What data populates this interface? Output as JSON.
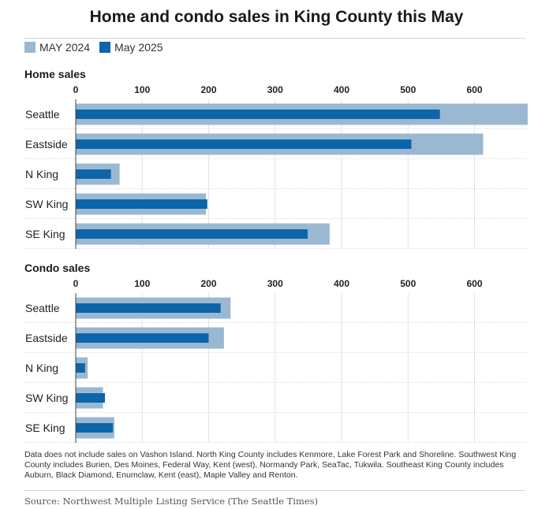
{
  "title": "Home and condo sales in King County this May",
  "colors": {
    "series_2024": "#9bb8d3",
    "series_2025": "#0d65a9"
  },
  "legend": [
    {
      "label": "MAY 2024",
      "color": "#9bb8d3"
    },
    {
      "label": "May 2025",
      "color": "#0d65a9"
    }
  ],
  "chart_data": [
    {
      "type": "bar",
      "orientation": "horizontal",
      "title": "Home sales",
      "categories": [
        "Seattle",
        "Eastside",
        "N King",
        "SW King",
        "SE King"
      ],
      "series": [
        {
          "name": "MAY 2024",
          "values": [
            680,
            613,
            66,
            196,
            382
          ]
        },
        {
          "name": "May 2025",
          "values": [
            548,
            505,
            53,
            198,
            349
          ]
        }
      ],
      "xticks": [
        0,
        100,
        200,
        300,
        400,
        500,
        600
      ],
      "xlim": [
        0,
        680
      ],
      "grid": true
    },
    {
      "type": "bar",
      "orientation": "horizontal",
      "title": "Condo sales",
      "categories": [
        "Seattle",
        "Eastside",
        "N King",
        "SW King",
        "SE King"
      ],
      "series": [
        {
          "name": "MAY 2024",
          "values": [
            233,
            223,
            18,
            41,
            58
          ]
        },
        {
          "name": "May 2025",
          "values": [
            218,
            200,
            14,
            44,
            56
          ]
        }
      ],
      "xticks": [
        0,
        100,
        200,
        300,
        400,
        500,
        600
      ],
      "xlim": [
        0,
        680
      ],
      "grid": true
    }
  ],
  "note": "Data does not include sales on Vashon Island. North King County includes Kenmore, Lake Forest Park and Shoreline. Southwest King County includes Burien, Des Moines, Federal Way, Kent (west), Normandy Park, SeaTac, Tukwila. Southeast King County includes Auburn, Black Diamond, Enumclaw, Kent (east), Maple Valley and Renton.",
  "source": "Source: Northwest Multiple Listing Service (The Seattle Times)"
}
